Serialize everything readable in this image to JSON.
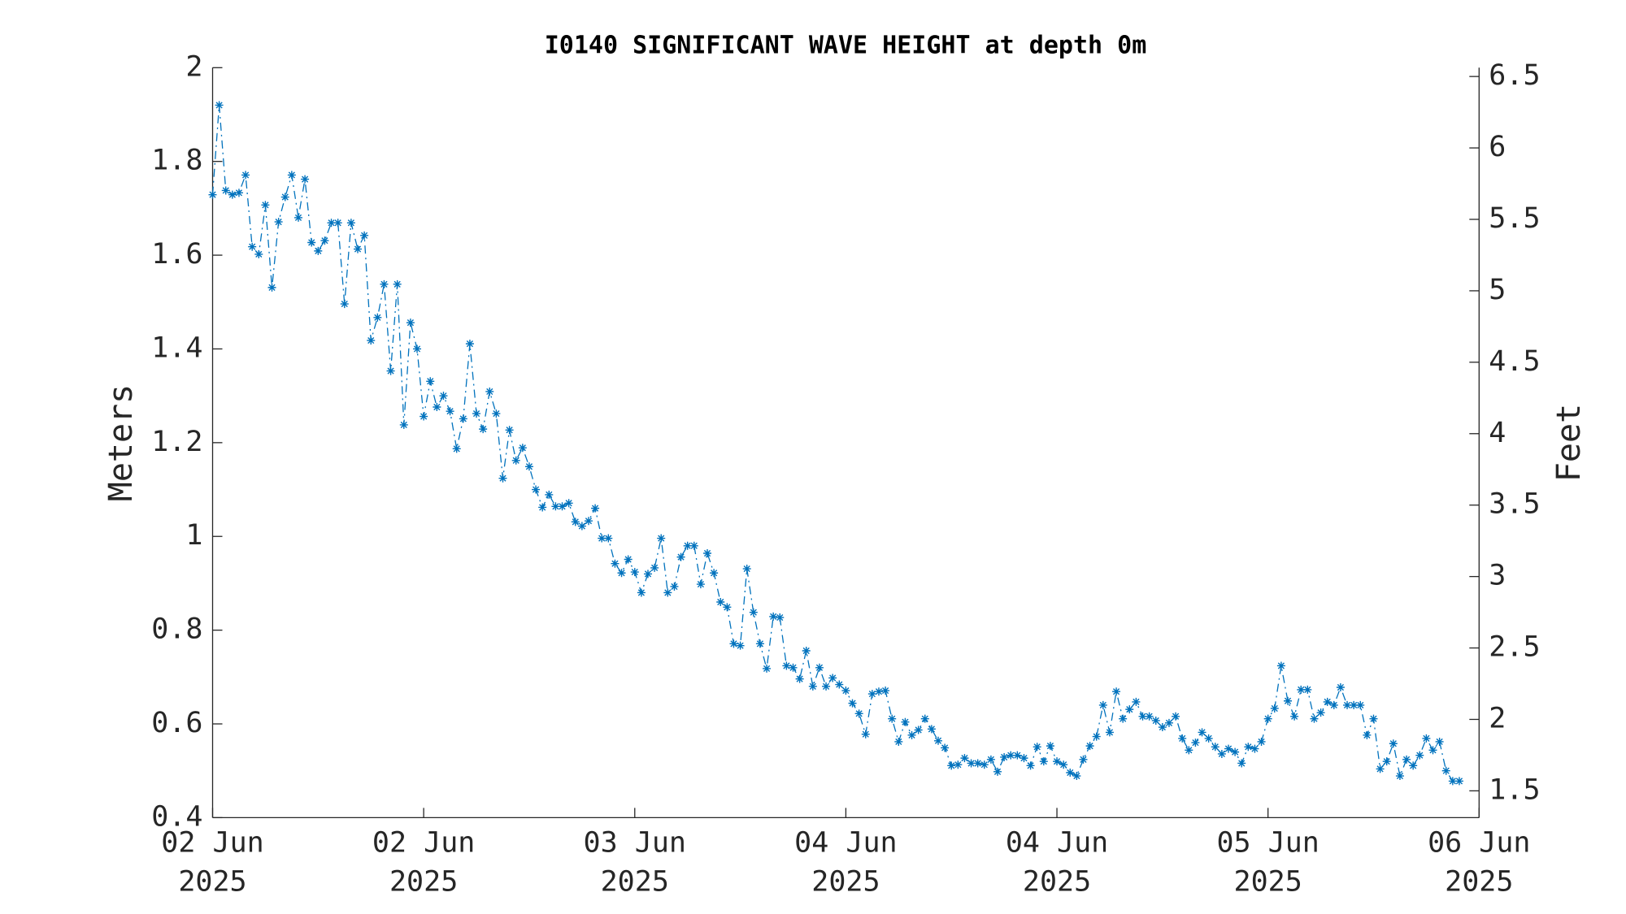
{
  "chart_data": {
    "type": "line",
    "title": "I0140 SIGNIFICANT WAVE HEIGHT at depth 0m",
    "ylabel": "Meters",
    "y2label": "Feet",
    "x": [
      "2025-06-02T06:00",
      "2025-06-02T06:30",
      "2025-06-02T07:00",
      "2025-06-02T07:30",
      "2025-06-02T08:00",
      "2025-06-02T08:30",
      "2025-06-02T09:00",
      "2025-06-02T09:30",
      "2025-06-02T10:00",
      "2025-06-02T10:30",
      "2025-06-02T11:00",
      "2025-06-02T11:30",
      "2025-06-02T12:00",
      "2025-06-02T12:30",
      "2025-06-02T13:00",
      "2025-06-02T13:30",
      "2025-06-02T14:00",
      "2025-06-02T14:30",
      "2025-06-02T15:00",
      "2025-06-02T15:30",
      "2025-06-02T16:00",
      "2025-06-02T16:30",
      "2025-06-02T17:00",
      "2025-06-02T17:30",
      "2025-06-02T18:00",
      "2025-06-02T18:30",
      "2025-06-02T19:00",
      "2025-06-02T19:30",
      "2025-06-02T20:00",
      "2025-06-02T20:30",
      "2025-06-02T21:00",
      "2025-06-02T21:30",
      "2025-06-02T22:00",
      "2025-06-02T22:30",
      "2025-06-02T23:00",
      "2025-06-02T23:30",
      "2025-06-03T00:00",
      "2025-06-03T00:30",
      "2025-06-03T01:00",
      "2025-06-03T01:30",
      "2025-06-03T02:00",
      "2025-06-03T02:30",
      "2025-06-03T03:00",
      "2025-06-03T03:30",
      "2025-06-03T04:00",
      "2025-06-03T04:30",
      "2025-06-03T05:00",
      "2025-06-03T05:30",
      "2025-06-03T06:00",
      "2025-06-03T06:30",
      "2025-06-03T07:00",
      "2025-06-03T07:30",
      "2025-06-03T08:00",
      "2025-06-03T08:30",
      "2025-06-03T09:00",
      "2025-06-03T09:30",
      "2025-06-03T10:00",
      "2025-06-03T10:30",
      "2025-06-03T11:00",
      "2025-06-03T11:30",
      "2025-06-03T12:00",
      "2025-06-03T12:30",
      "2025-06-03T13:00",
      "2025-06-03T13:30",
      "2025-06-03T14:00",
      "2025-06-03T14:30",
      "2025-06-03T15:00",
      "2025-06-03T15:30",
      "2025-06-03T16:00",
      "2025-06-03T16:30",
      "2025-06-03T17:00",
      "2025-06-03T17:30",
      "2025-06-03T18:00",
      "2025-06-03T18:30",
      "2025-06-03T19:00",
      "2025-06-03T19:30",
      "2025-06-03T20:00",
      "2025-06-03T20:30",
      "2025-06-03T21:00",
      "2025-06-03T21:30",
      "2025-06-03T22:00",
      "2025-06-03T22:30",
      "2025-06-03T23:00",
      "2025-06-03T23:30",
      "2025-06-04T00:00",
      "2025-06-04T00:30",
      "2025-06-04T01:00",
      "2025-06-04T01:30",
      "2025-06-04T02:00",
      "2025-06-04T02:30",
      "2025-06-04T03:00",
      "2025-06-04T03:30",
      "2025-06-04T04:00",
      "2025-06-04T04:30",
      "2025-06-04T05:00",
      "2025-06-04T05:30",
      "2025-06-04T06:00",
      "2025-06-04T06:30",
      "2025-06-04T07:00",
      "2025-06-04T07:30",
      "2025-06-04T08:00",
      "2025-06-04T08:30",
      "2025-06-04T09:00",
      "2025-06-04T09:30",
      "2025-06-04T10:00",
      "2025-06-04T10:30",
      "2025-06-04T11:00",
      "2025-06-04T11:30",
      "2025-06-04T12:00",
      "2025-06-04T12:30",
      "2025-06-04T13:00",
      "2025-06-04T13:30",
      "2025-06-04T14:00",
      "2025-06-04T14:30",
      "2025-06-04T15:00",
      "2025-06-04T15:30",
      "2025-06-04T16:00",
      "2025-06-04T16:30",
      "2025-06-04T17:00",
      "2025-06-04T17:30",
      "2025-06-04T18:00",
      "2025-06-04T18:30",
      "2025-06-04T19:00",
      "2025-06-04T19:30",
      "2025-06-04T20:00",
      "2025-06-04T20:30",
      "2025-06-04T21:00",
      "2025-06-04T21:30",
      "2025-06-04T22:00",
      "2025-06-04T22:30",
      "2025-06-04T23:00",
      "2025-06-04T23:30",
      "2025-06-05T00:00",
      "2025-06-05T00:30",
      "2025-06-05T01:00",
      "2025-06-05T01:30",
      "2025-06-05T02:00",
      "2025-06-05T02:30",
      "2025-06-05T03:00",
      "2025-06-05T03:30",
      "2025-06-05T04:00",
      "2025-06-05T04:30",
      "2025-06-05T05:00",
      "2025-06-05T05:30",
      "2025-06-05T06:00",
      "2025-06-05T06:30",
      "2025-06-05T07:00",
      "2025-06-05T07:30",
      "2025-06-05T08:00",
      "2025-06-05T08:30",
      "2025-06-05T09:00",
      "2025-06-05T09:30",
      "2025-06-05T10:00",
      "2025-06-05T10:30",
      "2025-06-05T11:00",
      "2025-06-05T11:30",
      "2025-06-05T12:00",
      "2025-06-05T12:30",
      "2025-06-05T13:00",
      "2025-06-05T13:30",
      "2025-06-05T14:00",
      "2025-06-05T14:30",
      "2025-06-05T15:00",
      "2025-06-05T15:30",
      "2025-06-05T16:00",
      "2025-06-05T16:30",
      "2025-06-05T17:00",
      "2025-06-05T17:30",
      "2025-06-05T18:00",
      "2025-06-05T18:30",
      "2025-06-05T19:00",
      "2025-06-05T19:30",
      "2025-06-05T20:00",
      "2025-06-05T20:30",
      "2025-06-05T21:00",
      "2025-06-05T21:30",
      "2025-06-05T22:00",
      "2025-06-05T22:30",
      "2025-06-05T23:00",
      "2025-06-05T23:30",
      "2025-06-06T00:00",
      "2025-06-06T00:30",
      "2025-06-06T01:00",
      "2025-06-06T01:30",
      "2025-06-06T02:00",
      "2025-06-06T02:30",
      "2025-06-06T03:00",
      "2025-06-06T03:30",
      "2025-06-06T04:00",
      "2025-06-06T04:30"
    ],
    "series": [
      {
        "color": "#0072bd",
        "marker": "*",
        "linestyle": "-.",
        "values": [
          1.729,
          1.92,
          1.738,
          1.729,
          1.733,
          1.771,
          1.618,
          1.602,
          1.707,
          1.531,
          1.671,
          1.724,
          1.771,
          1.68,
          1.762,
          1.627,
          1.609,
          1.631,
          1.669,
          1.669,
          1.496,
          1.669,
          1.613,
          1.642,
          1.418,
          1.467,
          1.538,
          1.353,
          1.538,
          1.238,
          1.456,
          1.4,
          1.256,
          1.331,
          1.276,
          1.3,
          1.267,
          1.187,
          1.251,
          1.411,
          1.262,
          1.229,
          1.309,
          1.262,
          1.124,
          1.227,
          1.162,
          1.189,
          1.149,
          1.1,
          1.062,
          1.089,
          1.064,
          1.064,
          1.071,
          1.031,
          1.022,
          1.033,
          1.06,
          0.996,
          0.996,
          0.942,
          0.922,
          0.951,
          0.924,
          0.88,
          0.92,
          0.933,
          0.996,
          0.88,
          0.893,
          0.956,
          0.98,
          0.98,
          0.898,
          0.964,
          0.922,
          0.86,
          0.849,
          0.771,
          0.767,
          0.931,
          0.838,
          0.771,
          0.718,
          0.829,
          0.827,
          0.724,
          0.72,
          0.696,
          0.756,
          0.68,
          0.72,
          0.68,
          0.698,
          0.684,
          0.671,
          0.644,
          0.622,
          0.578,
          0.664,
          0.669,
          0.671,
          0.611,
          0.562,
          0.604,
          0.576,
          0.587,
          0.611,
          0.589,
          0.564,
          0.549,
          0.511,
          0.513,
          0.527,
          0.516,
          0.516,
          0.513,
          0.524,
          0.498,
          0.529,
          0.533,
          0.533,
          0.527,
          0.511,
          0.551,
          0.52,
          0.553,
          0.52,
          0.513,
          0.496,
          0.489,
          0.524,
          0.553,
          0.573,
          0.64,
          0.582,
          0.669,
          0.611,
          0.631,
          0.647,
          0.616,
          0.616,
          0.607,
          0.593,
          0.602,
          0.616,
          0.569,
          0.544,
          0.56,
          0.582,
          0.569,
          0.551,
          0.536,
          0.547,
          0.54,
          0.516,
          0.551,
          0.547,
          0.562,
          0.611,
          0.633,
          0.724,
          0.649,
          0.616,
          0.673,
          0.673,
          0.611,
          0.624,
          0.647,
          0.64,
          0.678,
          0.64,
          0.64,
          0.64,
          0.576,
          0.611,
          0.504,
          0.52,
          0.558,
          0.489,
          0.524,
          0.511,
          0.533,
          0.569,
          0.544,
          0.562,
          0.5,
          0.478,
          0.478
        ]
      }
    ],
    "xlim": [
      "2025-06-02T06:00",
      "2025-06-06T06:00"
    ],
    "xticks": [
      {
        "value": "2025-06-02T06:00",
        "label": "02 Jun 2025"
      },
      {
        "value": "2025-06-02T22:00",
        "label": "02 Jun 2025"
      },
      {
        "value": "2025-06-03T14:00",
        "label": "03 Jun 2025"
      },
      {
        "value": "2025-06-04T06:00",
        "label": "04 Jun 2025"
      },
      {
        "value": "2025-06-04T22:00",
        "label": "04 Jun 2025"
      },
      {
        "value": "2025-06-05T14:00",
        "label": "05 Jun 2025"
      },
      {
        "value": "2025-06-06T06:00",
        "label": "06 Jun 2025"
      }
    ],
    "ylim": [
      0.4,
      2
    ],
    "yticks": [
      0.4,
      0.6,
      0.8,
      1,
      1.2,
      1.4,
      1.6,
      1.8,
      2
    ],
    "y2lim": [
      1.312336,
      6.56168
    ],
    "y2ticks": [
      1.5,
      2,
      2.5,
      3,
      3.5,
      4,
      4.5,
      5,
      5.5,
      6,
      6.5
    ],
    "grid": false
  }
}
